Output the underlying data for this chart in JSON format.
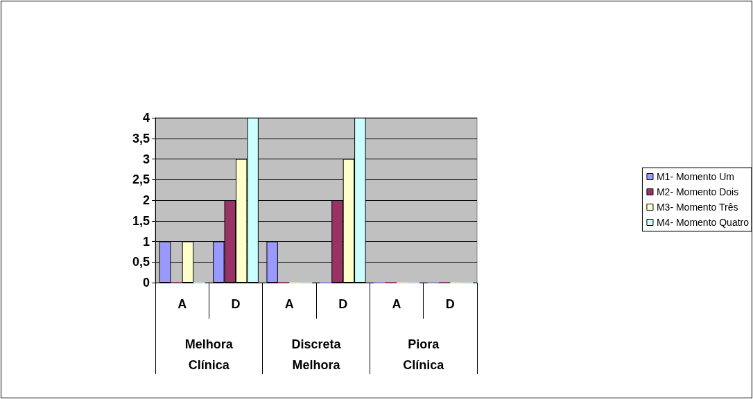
{
  "chart_data": {
    "type": "bar",
    "categories": [
      "A",
      "D",
      "A",
      "D",
      "A",
      "D"
    ],
    "annotations": [
      "Melhora Clínica",
      "Discreta Melhora",
      "Piora Clínica"
    ],
    "series": [
      {
        "name": "M1- Momento Um",
        "color": "#9999ff",
        "values": [
          1,
          1,
          1,
          0,
          0,
          0
        ]
      },
      {
        "name": "M2- Momento Dois",
        "color": "#993366",
        "values": [
          0,
          2,
          0,
          2,
          0,
          0
        ]
      },
      {
        "name": "M3- Momento Três",
        "color": "#ffffcc",
        "values": [
          1,
          3,
          0,
          3,
          0,
          0
        ]
      },
      {
        "name": "M4- Momento Quatro",
        "color": "#ccffff",
        "values": [
          0,
          4,
          0,
          4,
          0,
          0
        ]
      }
    ],
    "ylim": [
      0,
      4
    ],
    "yticks": [
      0,
      {
        "value": 0.5,
        "label": "0,5"
      },
      1,
      {
        "value": 1.5,
        "label": "1,5"
      },
      2,
      {
        "value": 2.5,
        "label": "2,5"
      },
      3,
      {
        "value": 3.5,
        "label": "3,5"
      },
      4
    ],
    "grid": "y",
    "legend": "right"
  }
}
